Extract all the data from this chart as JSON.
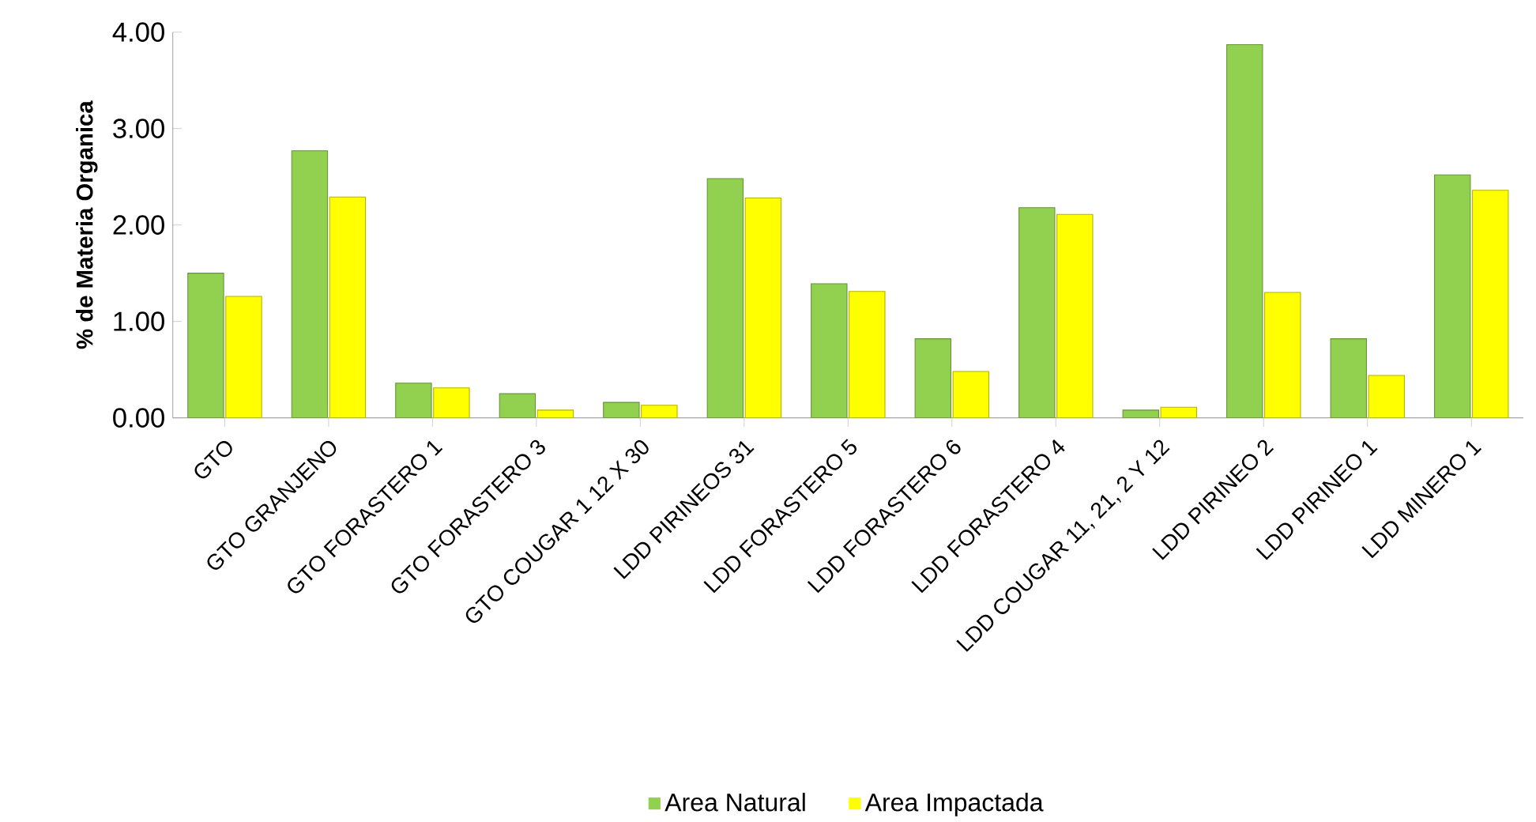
{
  "chart_data": {
    "type": "bar",
    "ylabel": "% de Materia Organica",
    "categories": [
      "GTO",
      "GTO GRANJENO",
      "GTO FORASTERO 1",
      "GTO FORASTERO 3",
      "GTO COUGAR 1 12 X 30",
      "LDD PIRINEOS 31",
      "LDD FORASTERO 5",
      "LDD FORASTERO 6",
      "LDD FORASTERO 4",
      "LDD COUGAR 11, 21, 2 Y 12",
      "LDD PIRINEO 2",
      "LDD PIRINEO 1",
      "LDD MINERO 1"
    ],
    "series": [
      {
        "name": "Area Natural",
        "color": "#92d050",
        "values": [
          1.5,
          2.77,
          0.36,
          0.25,
          0.16,
          2.48,
          1.39,
          0.82,
          2.18,
          0.08,
          3.87,
          0.82,
          2.52
        ]
      },
      {
        "name": "Area Impactada",
        "color": "#ffff00",
        "values": [
          1.26,
          2.29,
          0.31,
          0.08,
          0.13,
          2.28,
          1.31,
          0.48,
          2.11,
          0.11,
          1.3,
          0.44,
          2.36
        ]
      }
    ],
    "ylim": [
      0,
      4
    ],
    "yticks": [
      {
        "value": 0,
        "label": "0.00"
      },
      {
        "value": 1,
        "label": "1.00"
      },
      {
        "value": 2,
        "label": "2.00"
      },
      {
        "value": 3,
        "label": "3.00"
      },
      {
        "value": 4,
        "label": "4.00"
      }
    ],
    "legend": "bottom"
  }
}
